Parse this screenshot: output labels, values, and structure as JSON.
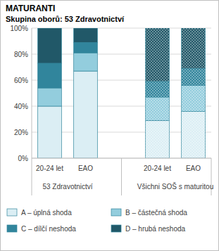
{
  "chart_data": {
    "type": "bar",
    "stacked": true,
    "title": "MATURANTI",
    "subtitle": "Skupina oborů: 53 Zdravotnictví",
    "categories": [
      "20-24 let",
      "EAO",
      "20-24 let",
      "EAO"
    ],
    "groups": [
      "53 Zdravotnictví",
      "Všichni SOŠ s maturitou"
    ],
    "series": [
      {
        "name": "A – úplná shoda",
        "color": "#dbeef4",
        "values": [
          40,
          67,
          29,
          36
        ]
      },
      {
        "name": "B – částečná shoda",
        "color": "#93cddd",
        "values": [
          14,
          14,
          18,
          20
        ]
      },
      {
        "name": "C – dílčí neshoda",
        "color": "#31859c",
        "values": [
          19,
          8,
          12,
          13
        ]
      },
      {
        "name": "D – hrubá neshoda",
        "color": "#215868",
        "values": [
          27,
          11,
          41,
          31
        ]
      }
    ],
    "ylim": [
      0,
      100
    ],
    "yticks": [
      {
        "value": 0,
        "label": "0%"
      },
      {
        "value": 20,
        "label": "20%"
      },
      {
        "value": 40,
        "label": "40%"
      },
      {
        "value": 60,
        "label": "60%"
      },
      {
        "value": 80,
        "label": "80%"
      },
      {
        "value": 100,
        "label": "100%"
      }
    ],
    "grid": true,
    "legend": "bottom"
  }
}
